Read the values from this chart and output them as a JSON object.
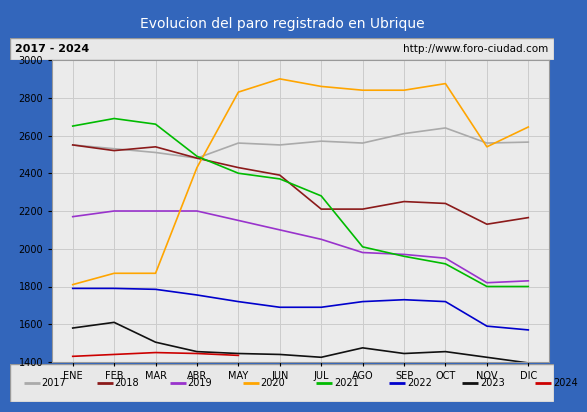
{
  "title": "Evolucion del paro registrado en Ubrique",
  "subtitle_left": "2017 - 2024",
  "subtitle_right": "http://www.foro-ciudad.com",
  "months": [
    "ENE",
    "FEB",
    "MAR",
    "ABR",
    "MAY",
    "JUN",
    "JUL",
    "AGO",
    "SEP",
    "OCT",
    "NOV",
    "DIC"
  ],
  "ylim": [
    1400,
    3000
  ],
  "yticks": [
    1400,
    1600,
    1800,
    2000,
    2200,
    2400,
    2600,
    2800,
    3000
  ],
  "series": {
    "2017": {
      "color": "#aaaaaa",
      "data": [
        2550,
        2530,
        2510,
        2480,
        2560,
        2550,
        2570,
        2560,
        2610,
        2640,
        2560,
        2565
      ]
    },
    "2018": {
      "color": "#8b1a1a",
      "data": [
        2550,
        2520,
        2540,
        2480,
        2430,
        2390,
        2210,
        2210,
        2250,
        2240,
        2130,
        2165
      ]
    },
    "2019": {
      "color": "#9933cc",
      "data": [
        2170,
        2200,
        2200,
        2200,
        2150,
        2100,
        2050,
        1980,
        1970,
        1950,
        1820,
        1830
      ]
    },
    "2020": {
      "color": "#ffa500",
      "data": [
        1810,
        1870,
        1870,
        2430,
        2830,
        2900,
        2860,
        2840,
        2840,
        2875,
        2540,
        2645
      ]
    },
    "2021": {
      "color": "#00bb00",
      "data": [
        2650,
        2690,
        2660,
        2490,
        2400,
        2370,
        2280,
        2010,
        1960,
        1920,
        1800,
        1800
      ]
    },
    "2022": {
      "color": "#0000cc",
      "data": [
        1790,
        1790,
        1785,
        1755,
        1720,
        1690,
        1690,
        1720,
        1730,
        1720,
        1590,
        1570
      ]
    },
    "2023": {
      "color": "#111111",
      "data": [
        1580,
        1610,
        1505,
        1455,
        1445,
        1440,
        1425,
        1475,
        1445,
        1455,
        1425,
        1395
      ]
    },
    "2024": {
      "color": "#cc0000",
      "data": [
        1430,
        1440,
        1450,
        1445,
        1435,
        null,
        null,
        null,
        null,
        null,
        null,
        null
      ]
    }
  },
  "years_order": [
    "2017",
    "2018",
    "2019",
    "2020",
    "2021",
    "2022",
    "2023",
    "2024"
  ],
  "background_color": "#e8e8e8",
  "plot_bg_color": "#ebebeb",
  "title_bg_color": "#4f86c6",
  "title_color": "white",
  "grid_color": "#cccccc",
  "border_color": "#3366bb"
}
